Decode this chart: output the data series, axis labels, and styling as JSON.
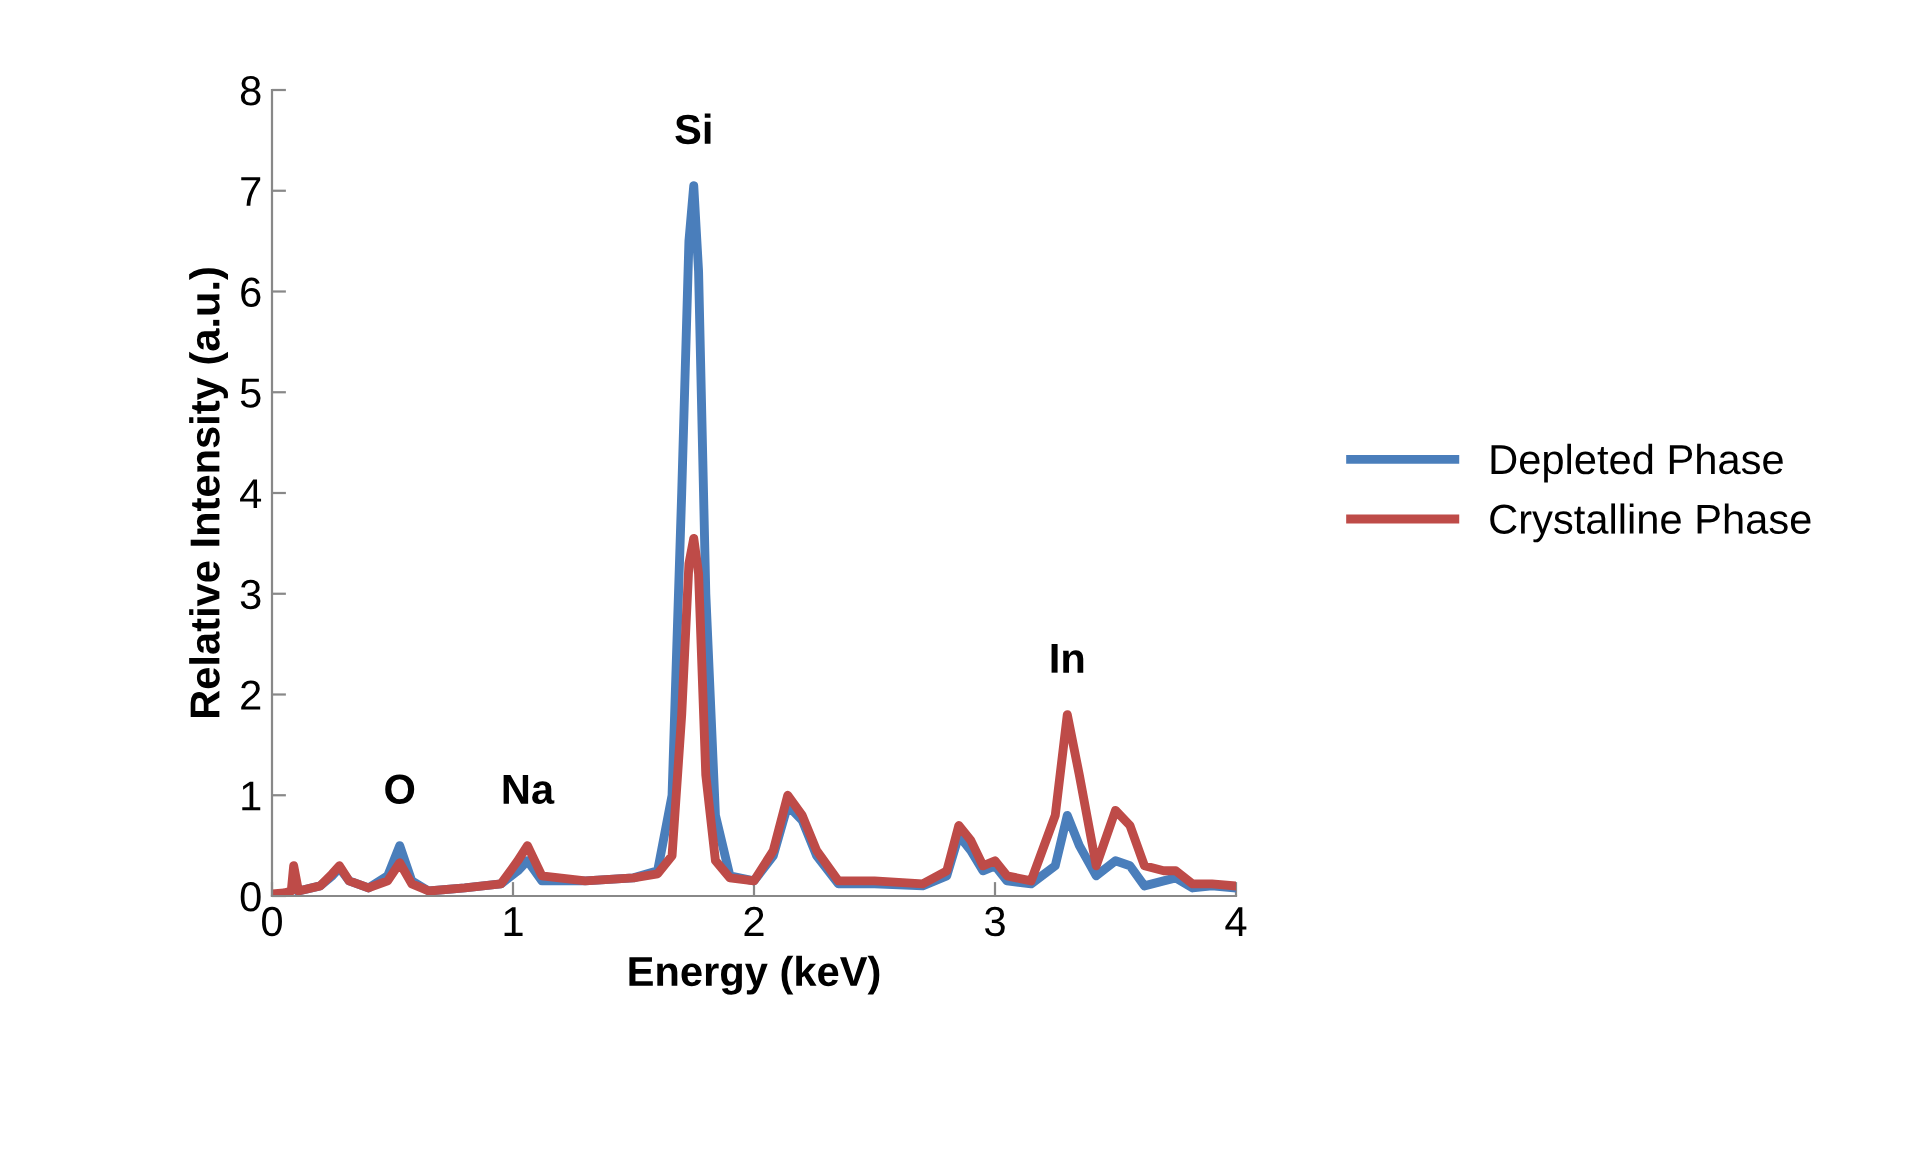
{
  "chart_data": {
    "type": "line",
    "xlabel": "Energy (keV)",
    "ylabel": "Relative Intensity (a.u.)",
    "x": [
      0,
      0.05,
      0.08,
      0.09,
      0.11,
      0.2,
      0.25,
      0.28,
      0.32,
      0.4,
      0.48,
      0.53,
      0.58,
      0.65,
      0.8,
      0.95,
      1.02,
      1.06,
      1.12,
      1.3,
      1.5,
      1.6,
      1.66,
      1.7,
      1.73,
      1.75,
      1.77,
      1.8,
      1.84,
      1.9,
      2.0,
      2.08,
      2.14,
      2.2,
      2.26,
      2.35,
      2.5,
      2.7,
      2.8,
      2.85,
      2.9,
      2.95,
      3.0,
      3.05,
      3.15,
      3.25,
      3.3,
      3.35,
      3.42,
      3.5,
      3.56,
      3.62,
      3.7,
      3.75,
      3.82,
      3.9,
      4.0
    ],
    "series": [
      {
        "name": "Depleted Phase",
        "color": "#4a7ebb",
        "values": [
          null,
          null,
          null,
          null,
          0.05,
          0.1,
          0.2,
          0.28,
          0.15,
          0.08,
          0.2,
          0.5,
          0.15,
          0.05,
          0.08,
          0.12,
          0.25,
          0.35,
          0.15,
          0.15,
          0.18,
          0.25,
          1.0,
          4.0,
          6.5,
          7.05,
          6.2,
          3.0,
          0.8,
          0.2,
          0.15,
          0.4,
          0.9,
          0.75,
          0.4,
          0.12,
          0.12,
          0.1,
          0.2,
          0.6,
          0.45,
          0.25,
          0.3,
          0.15,
          0.12,
          0.3,
          0.8,
          0.5,
          0.2,
          0.35,
          0.3,
          0.1,
          0.15,
          0.18,
          0.08,
          0.1,
          0.08
        ]
      },
      {
        "name": "Crystalline Phase",
        "color": "#be4b48",
        "values": [
          0.02,
          0.03,
          0.05,
          0.3,
          0.05,
          0.1,
          0.22,
          0.3,
          0.15,
          0.08,
          0.15,
          0.33,
          0.12,
          0.05,
          0.08,
          0.12,
          0.35,
          0.5,
          0.2,
          0.15,
          0.18,
          0.22,
          0.4,
          1.8,
          3.3,
          3.55,
          3.2,
          1.2,
          0.35,
          0.18,
          0.15,
          0.45,
          1.0,
          0.8,
          0.45,
          0.15,
          0.15,
          0.12,
          0.25,
          0.7,
          0.55,
          0.3,
          0.35,
          0.2,
          0.15,
          0.8,
          1.8,
          1.2,
          0.3,
          0.85,
          0.7,
          0.3,
          0.25,
          0.25,
          0.12,
          0.12,
          0.1
        ]
      }
    ],
    "annotations": [
      {
        "text": "O",
        "x": 0.53,
        "y": 0.5
      },
      {
        "text": "Na",
        "x": 1.06,
        "y": 0.5
      },
      {
        "text": "Si",
        "x": 1.75,
        "y": 7.05
      },
      {
        "text": "In",
        "x": 3.3,
        "y": 1.8
      }
    ],
    "xlim": [
      0,
      4
    ],
    "xticks": [
      0,
      1,
      2,
      3,
      4
    ],
    "ylim": [
      0,
      8
    ],
    "yticks": [
      0,
      1,
      2,
      3,
      4,
      5,
      6,
      7,
      8
    ],
    "grid": false,
    "legend": "right",
    "line_style": "solid",
    "marker": "none"
  }
}
